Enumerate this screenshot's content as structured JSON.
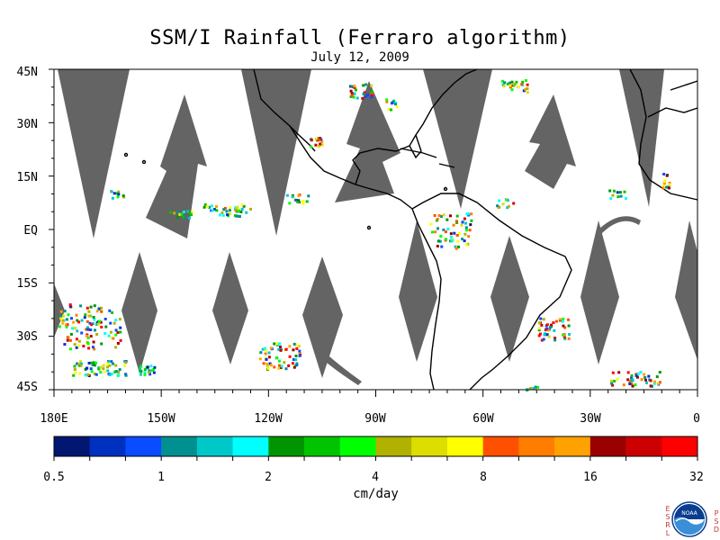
{
  "title": "SSM/I Rainfall (Ferraro algorithm)",
  "date": "July 12, 2009",
  "lat_labels": [
    "45N",
    "30N",
    "15N",
    "EQ",
    "15S",
    "30S",
    "45S"
  ],
  "lon_labels": [
    "180E",
    "150W",
    "120W",
    "90W",
    "60W",
    "30W",
    "0"
  ],
  "colorbar": {
    "colors": [
      "#021772",
      "#0030c0",
      "#0a4cff",
      "#00908f",
      "#00c8c8",
      "#00ffff",
      "#009500",
      "#00c400",
      "#00ff00",
      "#b1b100",
      "#dddd00",
      "#ffff00",
      "#ff5000",
      "#ff7d00",
      "#ffa200",
      "#9b0000",
      "#cc0000",
      "#ff0000"
    ],
    "tick_labels": [
      "0.5",
      "1",
      "2",
      "4",
      "8",
      "16",
      "32"
    ],
    "units": "cm/day"
  },
  "logo": {
    "name": "NOAA",
    "left_letters": [
      "E",
      "S",
      "R",
      "L"
    ],
    "right_letters": [
      "P",
      "S",
      "D"
    ]
  }
}
